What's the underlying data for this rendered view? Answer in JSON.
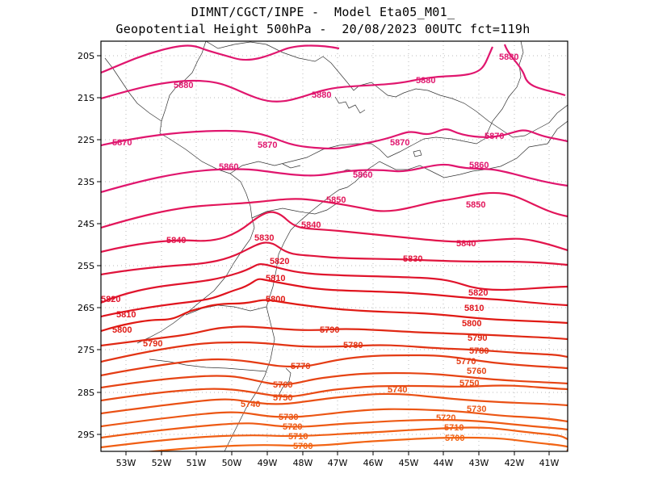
{
  "header": {
    "line1": "DIMNT/CGCT/INPE -  Model Eta05_M01_",
    "line2": "Geopotential Height 500hPa -  20/08/2023 00UTC fct=119h"
  },
  "axes": {
    "lat_labels": [
      "20S",
      "21S",
      "22S",
      "23S",
      "24S",
      "25S",
      "26S",
      "27S",
      "28S",
      "29S"
    ],
    "lon_labels": [
      "53W",
      "52W",
      "51W",
      "50W",
      "49W",
      "48W",
      "47W",
      "46W",
      "45W",
      "44W",
      "43W",
      "42W",
      "41W"
    ]
  },
  "contours": [
    {
      "value": "5880",
      "color": "#e0166e",
      "labels": [
        "5880",
        "5880",
        "5880",
        "5880"
      ]
    },
    {
      "value": "5870",
      "color": "#e0166e",
      "labels": [
        "5870",
        "5870",
        "5870",
        "5870"
      ]
    },
    {
      "value": "5860",
      "color": "#e0166e",
      "labels": [
        "5860",
        "5860",
        "5860"
      ]
    },
    {
      "value": "5850",
      "color": "#e2155a",
      "labels": [
        "5850",
        "5850"
      ]
    },
    {
      "value": "5840",
      "color": "#e2154c",
      "labels": [
        "5840",
        "5840",
        "5840"
      ]
    },
    {
      "value": "5830",
      "color": "#e0143c",
      "labels": [
        "5830",
        "5830"
      ]
    },
    {
      "value": "5820",
      "color": "#e0142c",
      "labels": [
        "5820",
        "5820",
        "5820"
      ]
    },
    {
      "value": "5810",
      "color": "#e0141e",
      "labels": [
        "5810",
        "5810",
        "5810"
      ]
    },
    {
      "value": "5800",
      "color": "#e01a14",
      "labels": [
        "5800",
        "5800",
        "5800"
      ]
    },
    {
      "value": "5790",
      "color": "#e02814",
      "labels": [
        "5790",
        "5790",
        "5790"
      ]
    },
    {
      "value": "5780",
      "color": "#e23414",
      "labels": [
        "5780",
        "5780"
      ]
    },
    {
      "value": "5770",
      "color": "#e43c14",
      "labels": [
        "5770",
        "5770"
      ]
    },
    {
      "value": "5760",
      "color": "#e64414",
      "labels": [
        "5760",
        "5760"
      ]
    },
    {
      "value": "5750",
      "color": "#e84a14",
      "labels": [
        "5750",
        "5750"
      ]
    },
    {
      "value": "5740",
      "color": "#ea5014",
      "labels": [
        "5740",
        "5740"
      ]
    },
    {
      "value": "5730",
      "color": "#ec5614",
      "labels": [
        "5730",
        "5730"
      ]
    },
    {
      "value": "5720",
      "color": "#ee5a14",
      "labels": [
        "5720",
        "5720"
      ]
    },
    {
      "value": "5710",
      "color": "#f05e14",
      "labels": [
        "5710",
        "5710"
      ]
    },
    {
      "value": "5700",
      "color": "#f26414",
      "labels": [
        "5700",
        "5700"
      ]
    }
  ]
}
